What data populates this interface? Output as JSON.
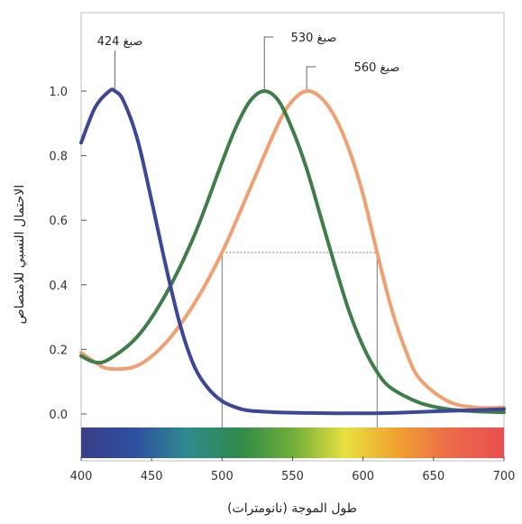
{
  "chart_data": {
    "type": "line",
    "title": "",
    "xlabel": "طول الموجة (نانومترات)",
    "ylabel": "الاحتمال النسبي للامتصاص",
    "xlim": [
      400,
      700
    ],
    "ylim": [
      -0.05,
      1.25
    ],
    "x_ticks": [
      "400",
      "450",
      "500",
      "550",
      "600",
      "650",
      "700"
    ],
    "y_ticks": [
      "0.0",
      "0.2",
      "0.4",
      "0.6",
      "0.8",
      "1.0"
    ],
    "x_tick_values": [
      400,
      450,
      500,
      550,
      600,
      650,
      700
    ],
    "y_tick_values": [
      0.0,
      0.2,
      0.4,
      0.6,
      0.8,
      1.0
    ],
    "grid": false,
    "series": [
      {
        "name": "صبغ 424",
        "color": "#3d4797",
        "x": [
          400,
          410,
          420,
          424,
          430,
          440,
          450,
          460,
          470,
          480,
          490,
          500,
          510,
          520,
          540,
          560,
          580,
          600,
          620,
          650,
          680,
          700
        ],
        "y": [
          0.84,
          0.95,
          1.0,
          1.0,
          0.97,
          0.85,
          0.66,
          0.46,
          0.28,
          0.15,
          0.08,
          0.04,
          0.02,
          0.01,
          0.005,
          0.003,
          0.002,
          0.002,
          0.003,
          0.008,
          0.012,
          0.015
        ]
      },
      {
        "name": "صبغ 530",
        "color": "#3f7e4a",
        "x": [
          400,
          410,
          420,
          440,
          460,
          480,
          500,
          510,
          520,
          530,
          540,
          550,
          560,
          570,
          580,
          590,
          600,
          610,
          620,
          640,
          660,
          680,
          700
        ],
        "y": [
          0.18,
          0.16,
          0.17,
          0.24,
          0.37,
          0.55,
          0.78,
          0.89,
          0.97,
          1.0,
          0.97,
          0.88,
          0.76,
          0.61,
          0.46,
          0.32,
          0.21,
          0.13,
          0.08,
          0.035,
          0.015,
          0.008,
          0.005
        ]
      },
      {
        "name": "صبغ 560",
        "color": "#f0a071",
        "x": [
          400,
          410,
          420,
          440,
          460,
          480,
          500,
          520,
          540,
          550,
          560,
          570,
          580,
          590,
          600,
          610,
          620,
          630,
          640,
          660,
          680,
          700
        ],
        "y": [
          0.19,
          0.16,
          0.14,
          0.15,
          0.22,
          0.34,
          0.5,
          0.7,
          0.9,
          0.97,
          1.0,
          0.98,
          0.92,
          0.82,
          0.68,
          0.5,
          0.33,
          0.2,
          0.11,
          0.04,
          0.02,
          0.02
        ]
      }
    ],
    "annotations": [
      {
        "text": "صبغ 424",
        "peak_x": 424,
        "peak_y": 1.0,
        "series": 0
      },
      {
        "text": "صبغ 530",
        "peak_x": 530,
        "peak_y": 1.0,
        "series": 1
      },
      {
        "text": "صبغ 560",
        "peak_x": 560,
        "peak_y": 1.0,
        "series": 2
      }
    ],
    "reference_lines": {
      "x_left": 500,
      "x_right": 610,
      "y": 0.5,
      "style": "dotted-horizontal, solid-verticals"
    },
    "spectrum_bar": [
      "#3a3f88",
      "#2e4fa0",
      "#2f8a8f",
      "#2f8a4a",
      "#6fae3a",
      "#e8e040",
      "#f0a030",
      "#ec6a4a",
      "#e94f4f"
    ]
  }
}
